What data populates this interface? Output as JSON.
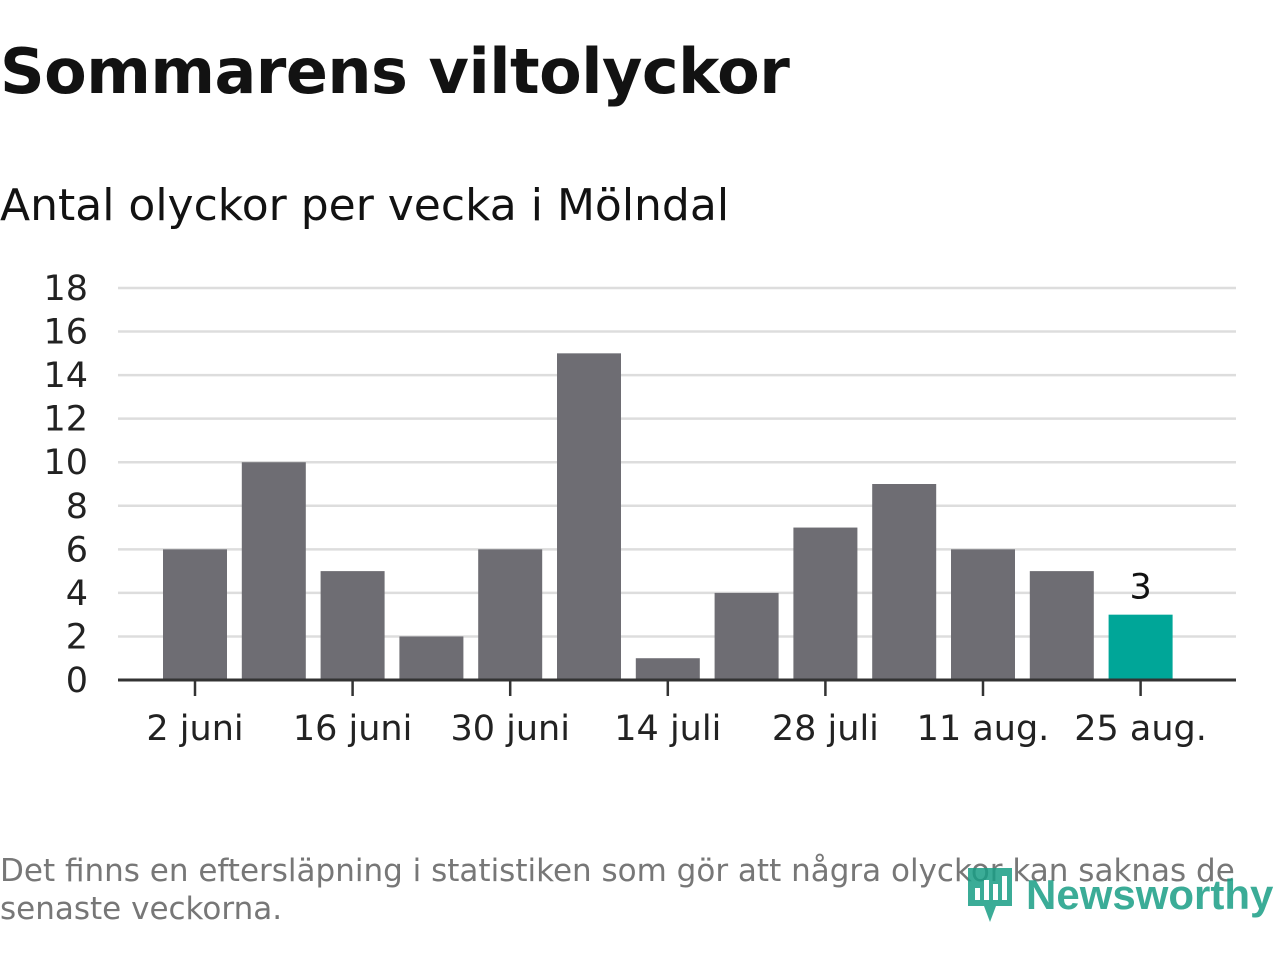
{
  "header": {
    "title": "Sommarens viltolyckor",
    "subtitle": "Antal olyckor per vecka i Mölndal"
  },
  "footer": {
    "note": "Det finns en eftersläpning i statistiken som gör att några olyckor kan saknas de senaste veckorna.",
    "brand": "Newsworthy",
    "brand_icon": "newsworthy-logo-icon"
  },
  "colors": {
    "bar": "#6e6d73",
    "highlight": "#00a698",
    "grid": "#dddddd",
    "axis": "#333333",
    "brand": "#1a9e86"
  },
  "chart_data": {
    "type": "bar",
    "title": "",
    "xlabel": "",
    "ylabel": "",
    "ylim": [
      0,
      18
    ],
    "yticks": [
      0,
      2,
      4,
      6,
      8,
      10,
      12,
      14,
      16,
      18
    ],
    "grid": true,
    "x_tick_labels": [
      "2 juni",
      "16 juni",
      "30 juni",
      "14 juli",
      "28 juli",
      "11 aug.",
      "25 aug."
    ],
    "x_tick_positions": [
      0,
      2,
      4,
      6,
      8,
      10,
      12
    ],
    "values": [
      6,
      10,
      5,
      2,
      6,
      15,
      1,
      4,
      7,
      9,
      6,
      5,
      3
    ],
    "highlight_index": 12,
    "data_labels": [
      {
        "index": 12,
        "text": "3"
      }
    ]
  }
}
